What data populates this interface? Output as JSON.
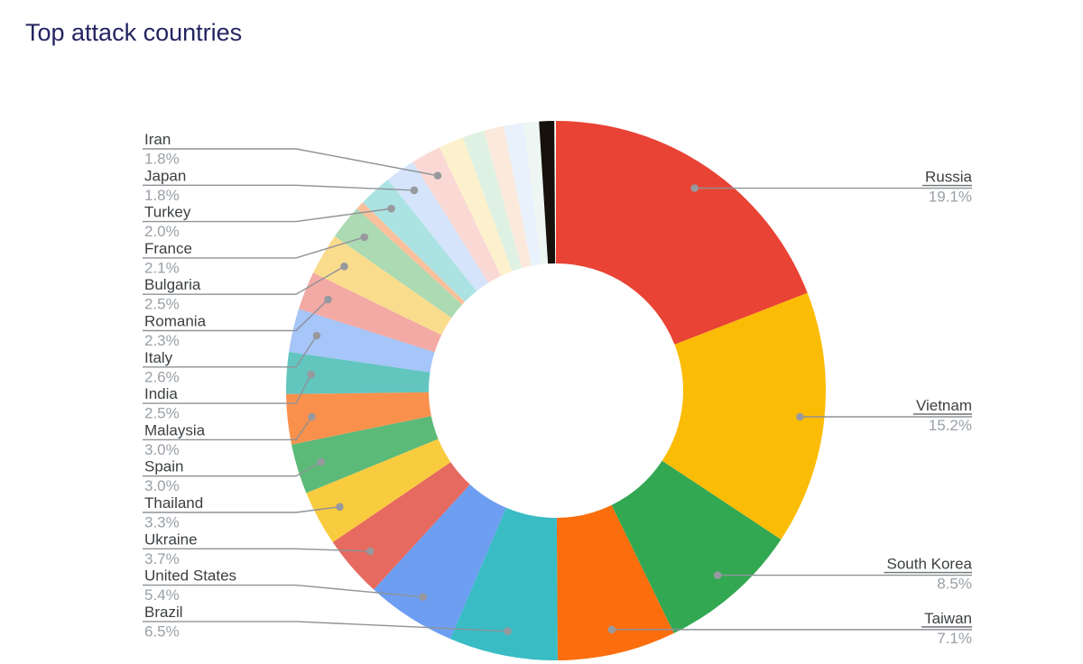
{
  "title": "Top attack countries",
  "style": {
    "background": "#FFFFFF",
    "title_color": "#242462",
    "label_color": "#3C4043",
    "value_color": "#9AA0A6",
    "leader_line_color": "#8E9297",
    "dot_color": "#97999E",
    "name_underline_color": "#6E7276"
  },
  "chart_data": {
    "type": "pie",
    "subtype": "donut",
    "title": "Top attack countries",
    "unit": "%",
    "direction": "clockwise",
    "start_angle": "12-oclock",
    "inner_radius_ratio": 0.47,
    "legend_position": "outside-callout-labels",
    "slices": [
      {
        "label": "Russia",
        "value": 19.1,
        "display": "19.1%",
        "color": "#E94335",
        "label_side": "right"
      },
      {
        "label": "Vietnam",
        "value": 15.2,
        "display": "15.2%",
        "color": "#FBBC05",
        "label_side": "right"
      },
      {
        "label": "South Korea",
        "value": 8.5,
        "display": "8.5%",
        "color": "#33A853",
        "label_side": "right"
      },
      {
        "label": "Taiwan",
        "value": 7.1,
        "display": "7.1%",
        "color": "#FC6D0D",
        "label_side": "right"
      },
      {
        "label": "Brazil",
        "value": 6.5,
        "display": "6.5%",
        "color": "#39BCC4",
        "label_side": "left"
      },
      {
        "label": "United States",
        "value": 5.4,
        "display": "5.4%",
        "color": "#6D9EF1",
        "label_side": "left"
      },
      {
        "label": "Ukraine",
        "value": 3.7,
        "display": "3.7%",
        "color": "#E66A5F",
        "label_side": "left"
      },
      {
        "label": "Thailand",
        "value": 3.3,
        "display": "3.3%",
        "color": "#F9CB3F",
        "label_side": "left"
      },
      {
        "label": "Spain",
        "value": 3.0,
        "display": "3.0%",
        "color": "#5CBA79",
        "label_side": "left"
      },
      {
        "label": "Malaysia",
        "value": 3.0,
        "display": "3.0%",
        "color": "#F9914D",
        "label_side": "left"
      },
      {
        "label": "India",
        "value": 2.5,
        "display": "2.5%",
        "color": "#62C5BE",
        "label_side": "left"
      },
      {
        "label": "Italy",
        "value": 2.6,
        "display": "2.6%",
        "color": "#A6C5F8",
        "label_side": "left"
      },
      {
        "label": "Romania",
        "value": 2.3,
        "display": "2.3%",
        "color": "#F3A9A4",
        "label_side": "left"
      },
      {
        "label": "Bulgaria",
        "value": 2.5,
        "display": "2.5%",
        "color": "#FADC8D",
        "label_side": "left"
      },
      {
        "label": "France",
        "value": 2.1,
        "display": "2.1%",
        "color": "#ABDAB3",
        "label_side": "left"
      },
      {
        "label": "",
        "value": 0.5,
        "display": "",
        "color": "#FAC09B",
        "label_side": "none"
      },
      {
        "label": "Turkey",
        "value": 2.0,
        "display": "2.0%",
        "color": "#ABE3E2",
        "label_side": "left"
      },
      {
        "label": "Japan",
        "value": 1.8,
        "display": "1.8%",
        "color": "#D5E4FB",
        "label_side": "left"
      },
      {
        "label": "Iran",
        "value": 1.8,
        "display": "1.8%",
        "color": "#FAD9D5",
        "label_side": "left"
      },
      {
        "label": "",
        "value": 1.5,
        "display": "",
        "color": "#FCF1CC",
        "label_side": "none"
      },
      {
        "label": "",
        "value": 1.3,
        "display": "",
        "color": "#DFF1E2",
        "label_side": "none"
      },
      {
        "label": "",
        "value": 1.2,
        "display": "",
        "color": "#FBE9DC",
        "label_side": "none"
      },
      {
        "label": "",
        "value": 1.2,
        "display": "",
        "color": "#E9F1FC",
        "label_side": "none"
      },
      {
        "label": "",
        "value": 0.9,
        "display": "",
        "color": "#EDF6F3",
        "label_side": "none"
      },
      {
        "label": "",
        "value": 1.0,
        "display": "",
        "color": "#16110B",
        "label_side": "none"
      }
    ]
  }
}
